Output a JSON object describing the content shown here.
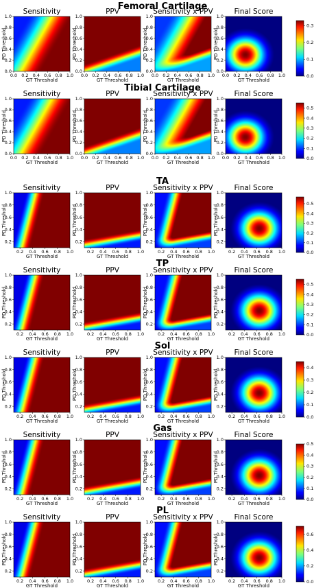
{
  "panel_titles": [
    "Sensitivity",
    "PPV",
    "Sensitivity x PPV",
    "Final Score"
  ],
  "xlabel": "GT Threshold",
  "ylabel": "PD Threshold",
  "colormap": "jet",
  "chart_data": [
    {
      "title": "Femoral Cartilage",
      "type": "heatmap",
      "x_ticks": [
        "0.0",
        "0.2",
        "0.4",
        "0.6",
        "0.8",
        "1.0"
      ],
      "y_ticks": [
        "0.0",
        "0.2",
        "0.4",
        "0.6",
        "0.8",
        "1.0"
      ],
      "xlim": [
        0,
        1
      ],
      "ylim": [
        0,
        1
      ],
      "colorbar": {
        "ticks": [
          "0.0",
          "0.1",
          "0.2",
          "0.3"
        ],
        "range": [
          0,
          0.33
        ]
      }
    },
    {
      "title": "Tibial Cartilage",
      "type": "heatmap",
      "x_ticks": [
        "0.0",
        "0.2",
        "0.4",
        "0.6",
        "0.8",
        "1.0"
      ],
      "y_ticks": [
        "0.0",
        "0.2",
        "0.4",
        "0.6",
        "0.8",
        "1.0"
      ],
      "xlim": [
        0,
        1
      ],
      "ylim": [
        0,
        1
      ],
      "colorbar": {
        "ticks": [
          "0.0",
          "0.1",
          "0.2",
          "0.3",
          "0.4",
          "0.5"
        ],
        "range": [
          0,
          0.55
        ]
      }
    },
    {
      "title": "TA",
      "type": "heatmap",
      "x_ticks": [
        "0.2",
        "0.4",
        "0.6",
        "0.8",
        "1.0"
      ],
      "y_ticks": [
        "0.2",
        "0.4",
        "0.6",
        "0.8",
        "1.0"
      ],
      "xlim": [
        0.1,
        1
      ],
      "ylim": [
        0.1,
        1
      ],
      "colorbar": {
        "ticks": [
          "0.0",
          "0.1",
          "0.2",
          "0.3",
          "0.4",
          "0.5"
        ],
        "range": [
          0,
          0.57
        ]
      }
    },
    {
      "title": "TP",
      "type": "heatmap",
      "x_ticks": [
        "0.2",
        "0.4",
        "0.6",
        "0.8",
        "1.0"
      ],
      "y_ticks": [
        "0.2",
        "0.4",
        "0.6",
        "0.8",
        "1.0"
      ],
      "xlim": [
        0.1,
        1
      ],
      "ylim": [
        0.1,
        1
      ],
      "colorbar": {
        "ticks": [
          "0.0",
          "0.1",
          "0.2",
          "0.3",
          "0.4",
          "0.5"
        ],
        "range": [
          0,
          0.55
        ]
      }
    },
    {
      "title": "Sol",
      "type": "heatmap",
      "x_ticks": [
        "0.2",
        "0.4",
        "0.6",
        "0.8",
        "1.0"
      ],
      "y_ticks": [
        "0.2",
        "0.4",
        "0.6",
        "0.8",
        "1.0"
      ],
      "xlim": [
        0.1,
        1
      ],
      "ylim": [
        0.1,
        1
      ],
      "colorbar": {
        "ticks": [
          "0.0",
          "0.1",
          "0.2",
          "0.3",
          "0.4"
        ],
        "range": [
          0,
          0.45
        ]
      }
    },
    {
      "title": "Gas",
      "type": "heatmap",
      "x_ticks": [
        "0.2",
        "0.4",
        "0.6",
        "0.8",
        "1.0"
      ],
      "y_ticks": [
        "0.2",
        "0.4",
        "0.6",
        "0.8",
        "1.0"
      ],
      "xlim": [
        0.1,
        1
      ],
      "ylim": [
        0.1,
        1
      ],
      "colorbar": {
        "ticks": [
          "0.0",
          "0.1",
          "0.2",
          "0.3",
          "0.4",
          "0.5"
        ],
        "range": [
          0,
          0.5
        ]
      }
    },
    {
      "title": "PL",
      "type": "heatmap",
      "x_ticks": [
        "0.2",
        "0.4",
        "0.6",
        "0.8",
        "1.0"
      ],
      "y_ticks": [
        "0.2",
        "0.4",
        "0.6",
        "0.8",
        "1.0"
      ],
      "xlim": [
        0.1,
        1
      ],
      "ylim": [
        0.1,
        1
      ],
      "colorbar": {
        "ticks": [
          "0.0",
          "0.2",
          "0.4",
          "0.6"
        ],
        "range": [
          0,
          0.7
        ]
      }
    }
  ]
}
